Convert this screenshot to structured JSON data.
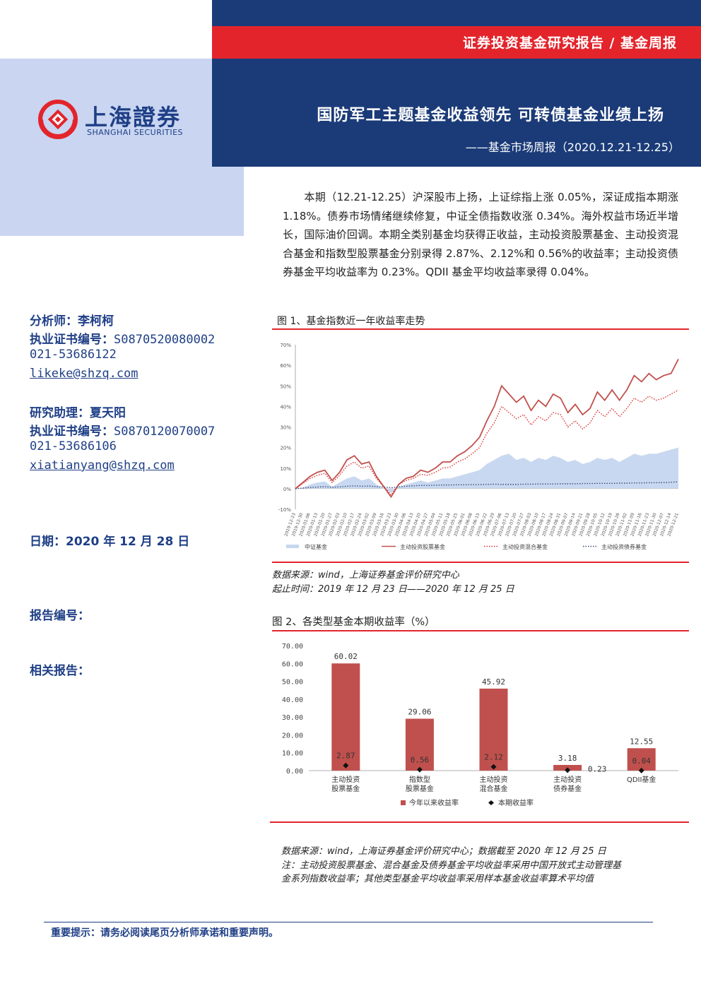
{
  "header": {
    "series_label": "证券投资基金研究报告 / 基金周报",
    "title": "国防军工主题基金收益领先 可转债基金业绩上扬",
    "subtitle": "——基金市场周报（2020.12.21-12.25）"
  },
  "logo": {
    "name_cn": "上海證券",
    "name_en": "SHANGHAI SECURITIES"
  },
  "sidebar": {
    "analyst": "分析师：李柯柯",
    "analyst_cert": "执业证书编号：",
    "analyst_cert_no": "S0870520080002",
    "analyst_phone": "021-53686122",
    "analyst_email": "likeke@shzq.com",
    "assistant": "研究助理：夏天阳",
    "assistant_cert": "执业证书编号：",
    "assistant_cert_no": "S0870120070007",
    "assistant_phone": "021-53686106",
    "assistant_email": "xiatianyang@shzq.com",
    "date": "日期：2020 年 12 月 28 日",
    "report_no": "报告编号：",
    "related": "相关报告："
  },
  "summary": "本期（12.21-12.25）沪深股市上扬，上证综指上涨 0.05%，深证成指本期涨 1.18%。债券市场情绪继续修复，中证全债指数收涨 0.34%。海外权益市场近半增长，国际油价回调。本期全类别基金均获得正收益，主动投资股票基金、主动投资混合基金和指数型股票基金分别录得 2.87%、2.12%和 0.56%的收益率；主动投资债券基金平均收益率为 0.23%。QDII 基金平均收益率录得 0.04%。",
  "figure1": {
    "title": "图 1、基金指数近一年收益率走势",
    "source": "数据来源：wind，上海证券基金评价研究中心",
    "period": "起止时间：2019 年 12 月 23 日——2020 年 12 月 25 日"
  },
  "figure2": {
    "title": "图 2、各类型基金本期收益率（%）"
  },
  "notes": {
    "source": "数据来源：wind，上海证券基金评价研究中心；数据截至 2020 年 12 月 25 日",
    "note_line1": "注：主动投资股票基金、混合基金及债券基金平均收益率采用中国开放式主动管理基",
    "note_line2": "金系列指数收益率；其他类型基金平均收益率采用样本基金收益率算术平均值"
  },
  "disclaimer": "重要提示：请务必阅读尾页分析师承诺和重要声明。",
  "colors": {
    "navy": "#1b3b78",
    "red": "#e3242b",
    "bar_red": "#c0504d",
    "area_blue": "#c5d6ef"
  },
  "chart_data": [
    {
      "type": "line",
      "title": "",
      "y_ticks": [
        "70%",
        "60%",
        "50%",
        "40%",
        "30%",
        "20%",
        "10%",
        "0%",
        "-10%"
      ],
      "ylim": [
        -10,
        70
      ],
      "x_ticks": [
        "2019-12-23",
        "2019-12-30",
        "2020-01-06",
        "2020-01-13",
        "2020-01-20",
        "2020-01-27",
        "2020-02-03",
        "2020-02-10",
        "2020-02-17",
        "2020-02-24",
        "2020-03-02",
        "2020-03-09",
        "2020-03-16",
        "2020-03-23",
        "2020-03-30",
        "2020-04-06",
        "2020-04-13",
        "2020-04-20",
        "2020-04-27",
        "2020-05-04",
        "2020-05-11",
        "2020-05-18",
        "2020-05-25",
        "2020-06-01",
        "2020-06-08",
        "2020-06-15",
        "2020-06-22",
        "2020-06-29",
        "2020-07-06",
        "2020-07-13",
        "2020-07-20",
        "2020-07-27",
        "2020-08-03",
        "2020-08-10",
        "2020-08-17",
        "2020-08-24",
        "2020-08-31",
        "2020-09-07",
        "2020-09-14",
        "2020-09-21",
        "2020-09-28",
        "2020-10-05",
        "2020-10-12",
        "2020-10-19",
        "2020-10-26",
        "2020-11-02",
        "2020-11-09",
        "2020-11-16",
        "2020-11-23",
        "2020-11-30",
        "2020-12-07",
        "2020-12-14",
        "2020-12-21"
      ],
      "series": [
        {
          "name": "中证基金",
          "style": "area",
          "values": [
            0,
            0.5,
            2,
            3,
            3.5,
            1,
            3,
            5,
            6,
            4,
            5,
            2,
            0,
            -2,
            1,
            2,
            3,
            4,
            3,
            4,
            5,
            5,
            6,
            7,
            8,
            9,
            12,
            14,
            16,
            17,
            14,
            15,
            13,
            15,
            14,
            16,
            15,
            13,
            14,
            12,
            13,
            15,
            14,
            15,
            13,
            15,
            17,
            16,
            17,
            17,
            18,
            19,
            20
          ]
        },
        {
          "name": "主动投资股票基金",
          "style": "solid",
          "values": [
            0,
            3,
            6,
            8,
            9,
            4,
            8,
            14,
            16,
            12,
            13,
            6,
            1,
            -4,
            2,
            5,
            6,
            9,
            8,
            10,
            13,
            13,
            16,
            18,
            21,
            25,
            33,
            40,
            50,
            46,
            42,
            45,
            38,
            43,
            40,
            46,
            44,
            37,
            41,
            36,
            39,
            47,
            43,
            48,
            43,
            48,
            55,
            52,
            56,
            53,
            55,
            56,
            63
          ]
        },
        {
          "name": "主动投资混合基金",
          "style": "dotted",
          "values": [
            0,
            2.5,
            5,
            6.5,
            7.5,
            3,
            6.5,
            11,
            13,
            10,
            11,
            5,
            1,
            -3,
            2,
            4,
            5,
            7,
            6.5,
            8,
            10,
            10.5,
            13,
            14.5,
            17,
            20,
            27,
            32,
            40,
            37,
            34,
            36,
            31,
            35,
            33,
            37,
            36,
            30,
            33,
            29,
            32,
            38,
            35,
            39,
            35,
            39,
            44,
            42,
            45,
            43,
            44,
            46,
            48
          ]
        },
        {
          "name": "主动投资债券基金",
          "style": "dotted",
          "values": [
            0,
            0.3,
            0.6,
            0.8,
            1,
            0.7,
            0.9,
            1.2,
            1.4,
            1.2,
            1.3,
            1,
            0.8,
            0.5,
            0.9,
            1.2,
            1.4,
            1.6,
            1.6,
            1.7,
            1.8,
            1.8,
            1.9,
            1.9,
            2,
            2,
            2.1,
            2.2,
            2.1,
            2.1,
            2.1,
            2.2,
            2.2,
            2.3,
            2.3,
            2.3,
            2.4,
            2.4,
            2.4,
            2.5,
            2.5,
            2.6,
            2.6,
            2.6,
            2.7,
            2.7,
            2.8,
            2.8,
            2.9,
            2.9,
            3,
            3.1,
            3.4
          ]
        }
      ],
      "legend": "bottom",
      "grid": false
    },
    {
      "type": "bar",
      "title": "",
      "ylim": [
        0,
        70
      ],
      "y_ticks": [
        "70.00",
        "60.00",
        "50.00",
        "40.00",
        "30.00",
        "20.00",
        "10.00",
        "0.00"
      ],
      "categories": [
        [
          "主动投资",
          "股票基金"
        ],
        [
          "指数型",
          "股票基金"
        ],
        [
          "主动投资",
          "混合基金"
        ],
        [
          "主动投资",
          "债券基金"
        ],
        [
          "QDII基金"
        ]
      ],
      "series": [
        {
          "name": "今年以来收益率",
          "values": [
            60.02,
            29.06,
            45.92,
            3.18,
            12.55
          ],
          "labels": [
            "60.02",
            "29.06",
            "45.92",
            "3.18",
            "12.55"
          ]
        },
        {
          "name": "本期收益率",
          "values": [
            2.87,
            0.56,
            2.12,
            0.23,
            0.04
          ],
          "labels": [
            "2.87",
            "0.56",
            "2.12",
            "0.23",
            "0.04"
          ]
        }
      ],
      "legend": "bottom"
    }
  ]
}
